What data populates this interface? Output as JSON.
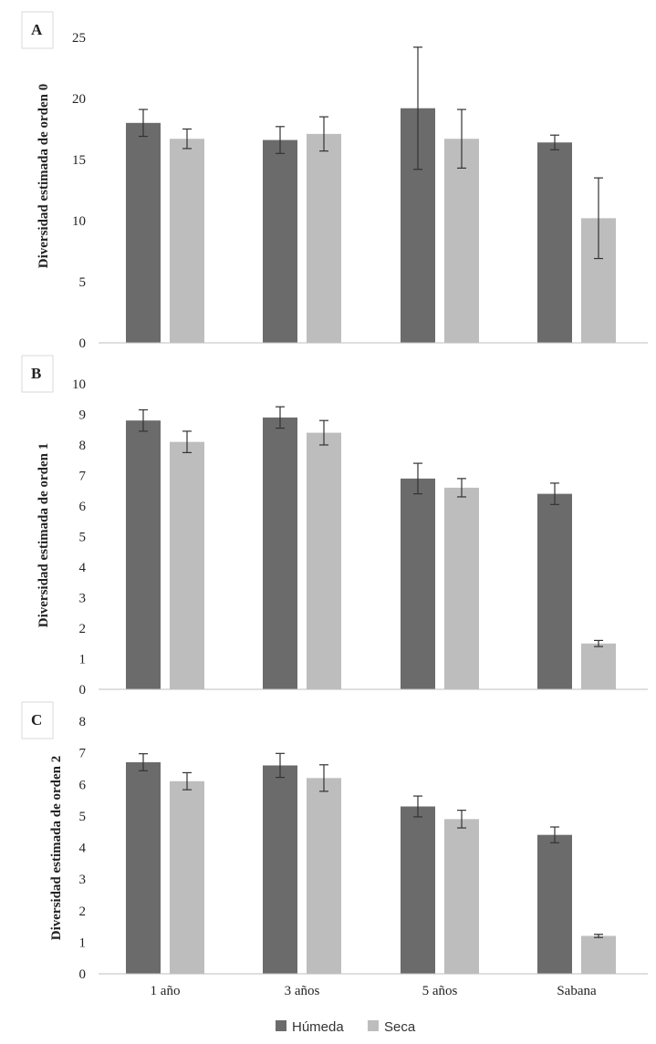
{
  "legend": {
    "items": [
      {
        "label": "Húmeda",
        "color": "#6b6b6b"
      },
      {
        "label": "Seca",
        "color": "#bdbdbd"
      }
    ]
  },
  "chart_data": [
    {
      "type": "bar",
      "panel": "A",
      "ylabel": "Diversidad estimada de orden 0",
      "ylim": [
        0,
        25
      ],
      "yticks": [
        0,
        5,
        10,
        15,
        20,
        25
      ],
      "categories": [
        "1 año",
        "3 años",
        "5 años",
        "Sabana"
      ],
      "series": [
        {
          "name": "Húmeda",
          "color": "#6b6b6b",
          "values": [
            18.0,
            16.6,
            19.2,
            16.4
          ],
          "errors": [
            1.1,
            1.1,
            5.0,
            0.6
          ]
        },
        {
          "name": "Seca",
          "color": "#bdbdbd",
          "values": [
            16.7,
            17.1,
            16.7,
            10.2
          ],
          "errors": [
            0.8,
            1.4,
            2.4,
            3.3
          ]
        }
      ]
    },
    {
      "type": "bar",
      "panel": "B",
      "ylabel": "Diversidad estimada de orden 1",
      "ylim": [
        0,
        10
      ],
      "yticks": [
        0,
        1,
        2,
        3,
        4,
        5,
        6,
        7,
        8,
        9,
        10
      ],
      "categories": [
        "1 año",
        "3 años",
        "5 años",
        "Sabana"
      ],
      "series": [
        {
          "name": "Húmeda",
          "color": "#6b6b6b",
          "values": [
            8.8,
            8.9,
            6.9,
            6.4
          ],
          "errors": [
            0.35,
            0.35,
            0.5,
            0.35
          ]
        },
        {
          "name": "Seca",
          "color": "#bdbdbd",
          "values": [
            8.1,
            8.4,
            6.6,
            1.5
          ],
          "errors": [
            0.35,
            0.4,
            0.3,
            0.1
          ]
        }
      ]
    },
    {
      "type": "bar",
      "panel": "C",
      "ylabel": "Diversidad estimada de orden 2",
      "ylim": [
        0,
        8
      ],
      "yticks": [
        0,
        1,
        2,
        3,
        4,
        5,
        6,
        7,
        8
      ],
      "categories": [
        "1 año",
        "3 años",
        "5 años",
        "Sabana"
      ],
      "series": [
        {
          "name": "Húmeda",
          "color": "#6b6b6b",
          "values": [
            6.7,
            6.6,
            5.3,
            4.4
          ],
          "errors": [
            0.27,
            0.38,
            0.33,
            0.25
          ]
        },
        {
          "name": "Seca",
          "color": "#bdbdbd",
          "values": [
            6.1,
            6.2,
            4.9,
            1.2
          ],
          "errors": [
            0.27,
            0.42,
            0.28,
            0.05
          ]
        }
      ]
    }
  ]
}
